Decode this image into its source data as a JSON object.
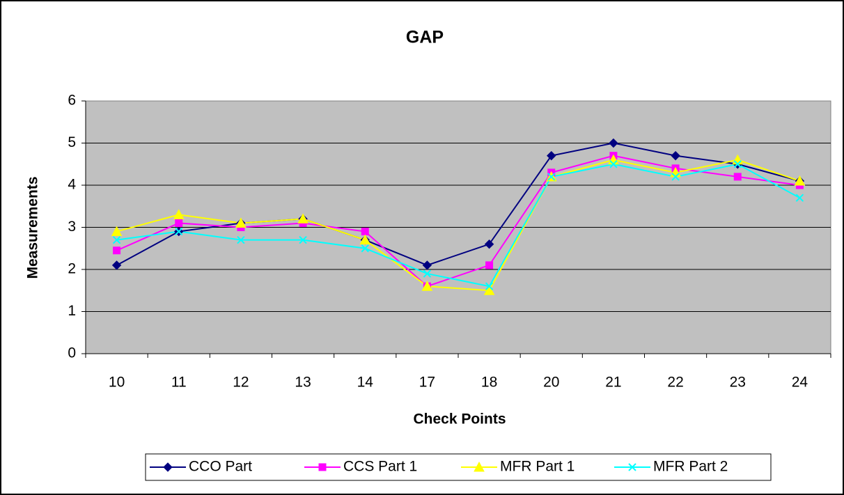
{
  "chart_data": {
    "type": "line",
    "title": "GAP",
    "x_label": "Check Points",
    "y_label": "Measurements",
    "categories": [
      "10",
      "11",
      "12",
      "13",
      "14",
      "17",
      "18",
      "20",
      "21",
      "22",
      "23",
      "24"
    ],
    "series": [
      {
        "name": "CCO Part",
        "color": "#000080",
        "marker": "diamond",
        "values": [
          2.1,
          2.9,
          3.1,
          3.2,
          2.7,
          2.1,
          2.6,
          4.7,
          5.0,
          4.7,
          4.5,
          4.1
        ]
      },
      {
        "name": "CCS Part 1",
        "color": "#FF00FF",
        "marker": "square",
        "values": [
          2.45,
          3.1,
          3.0,
          3.1,
          2.9,
          1.6,
          2.1,
          4.3,
          4.7,
          4.4,
          4.2,
          4.0
        ]
      },
      {
        "name": "MFR Part 1",
        "color": "#FFFF00",
        "marker": "triangle",
        "values": [
          2.9,
          3.3,
          3.1,
          3.2,
          2.7,
          1.6,
          1.5,
          4.2,
          4.6,
          4.3,
          4.6,
          4.1
        ]
      },
      {
        "name": "MFR Part 2",
        "color": "#00FFFF",
        "marker": "x",
        "values": [
          2.7,
          2.9,
          2.7,
          2.7,
          2.5,
          1.9,
          1.6,
          4.2,
          4.5,
          4.2,
          4.5,
          3.7
        ]
      }
    ],
    "ylim": [
      0,
      6
    ],
    "yticks": [
      0,
      1,
      2,
      3,
      4,
      5,
      6
    ],
    "grid": true,
    "legend": "bottom"
  }
}
